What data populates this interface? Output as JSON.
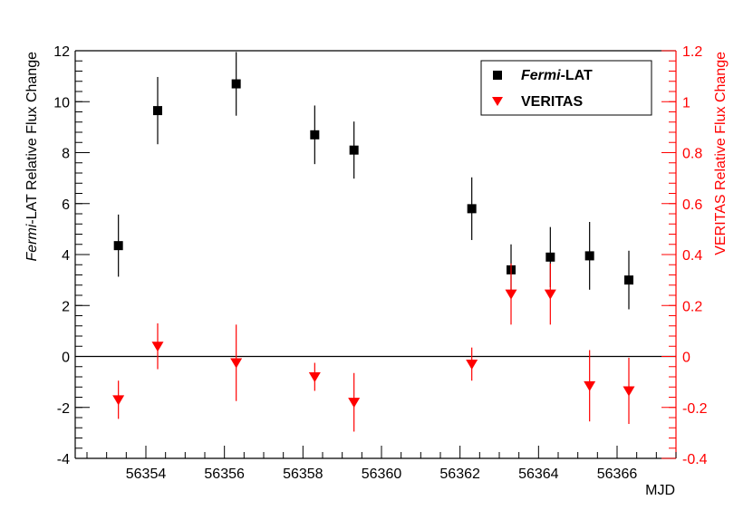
{
  "chart_data": {
    "type": "scatter",
    "x_axis": {
      "label": "MJD",
      "range": [
        56352.2,
        56367.5
      ],
      "tick_labels": [
        "56354",
        "56356",
        "56358",
        "56360",
        "56362",
        "56364",
        "56366"
      ],
      "ticks": [
        56354,
        56356,
        56358,
        56360,
        56362,
        56364,
        56366
      ]
    },
    "y_axis_left": {
      "label_italic": "Fermi",
      "label_rest": "-LAT Relative Flux Change",
      "range": [
        -4,
        12
      ],
      "tick_labels": [
        "-4",
        "-2",
        "0",
        "2",
        "4",
        "6",
        "8",
        "10",
        "12"
      ],
      "ticks": [
        -4,
        -2,
        0,
        2,
        4,
        6,
        8,
        10,
        12
      ],
      "color": "#000000"
    },
    "y_axis_right": {
      "label": "VERITAS Relative Flux Change",
      "range": [
        -0.4,
        1.2
      ],
      "tick_labels": [
        "-0.4",
        "-0.2",
        "0",
        "0.2",
        "0.4",
        "0.6",
        "0.8",
        "1",
        "1.2"
      ],
      "ticks": [
        -0.4,
        -0.2,
        0,
        0.2,
        0.4,
        0.6,
        0.8,
        1.0,
        1.2
      ],
      "color": "#ff0000"
    },
    "zero_line": true,
    "grid": false,
    "legend": {
      "placement": "top-right",
      "entries": [
        {
          "name_italic": "Fermi",
          "name_rest": "-LAT",
          "marker": "square",
          "color": "#000000"
        },
        {
          "name_italic": "",
          "name_rest": "VERITAS",
          "marker": "triangle-down",
          "color": "#ff0000"
        }
      ]
    },
    "series": [
      {
        "name": "Fermi-LAT",
        "axis": "left",
        "marker": "square",
        "color": "#000000",
        "points": [
          {
            "x": 56353.3,
            "y": 4.35,
            "err": 1.22
          },
          {
            "x": 56354.3,
            "y": 9.65,
            "err": 1.32
          },
          {
            "x": 56356.3,
            "y": 10.7,
            "err": 1.25
          },
          {
            "x": 56358.3,
            "y": 8.7,
            "err": 1.15
          },
          {
            "x": 56359.3,
            "y": 8.1,
            "err": 1.12
          },
          {
            "x": 56362.3,
            "y": 5.8,
            "err": 1.23
          },
          {
            "x": 56363.3,
            "y": 3.4,
            "err": 1.0
          },
          {
            "x": 56364.3,
            "y": 3.9,
            "err": 1.18
          },
          {
            "x": 56365.3,
            "y": 3.95,
            "err": 1.33
          },
          {
            "x": 56366.3,
            "y": 3.0,
            "err": 1.15
          }
        ]
      },
      {
        "name": "VERITAS",
        "axis": "right",
        "marker": "triangle-down",
        "color": "#ff0000",
        "points": [
          {
            "x": 56353.3,
            "y": -0.17,
            "err": 0.075
          },
          {
            "x": 56354.3,
            "y": 0.04,
            "err": 0.09
          },
          {
            "x": 56356.3,
            "y": -0.025,
            "err": 0.15
          },
          {
            "x": 56358.3,
            "y": -0.08,
            "err": 0.055
          },
          {
            "x": 56359.3,
            "y": -0.18,
            "err": 0.115
          },
          {
            "x": 56362.3,
            "y": -0.03,
            "err": 0.065
          },
          {
            "x": 56363.3,
            "y": 0.245,
            "err": 0.12
          },
          {
            "x": 56364.3,
            "y": 0.245,
            "err": 0.12
          },
          {
            "x": 56365.3,
            "y": -0.115,
            "err": 0.14
          },
          {
            "x": 56366.3,
            "y": -0.135,
            "err": 0.13
          }
        ]
      }
    ]
  }
}
